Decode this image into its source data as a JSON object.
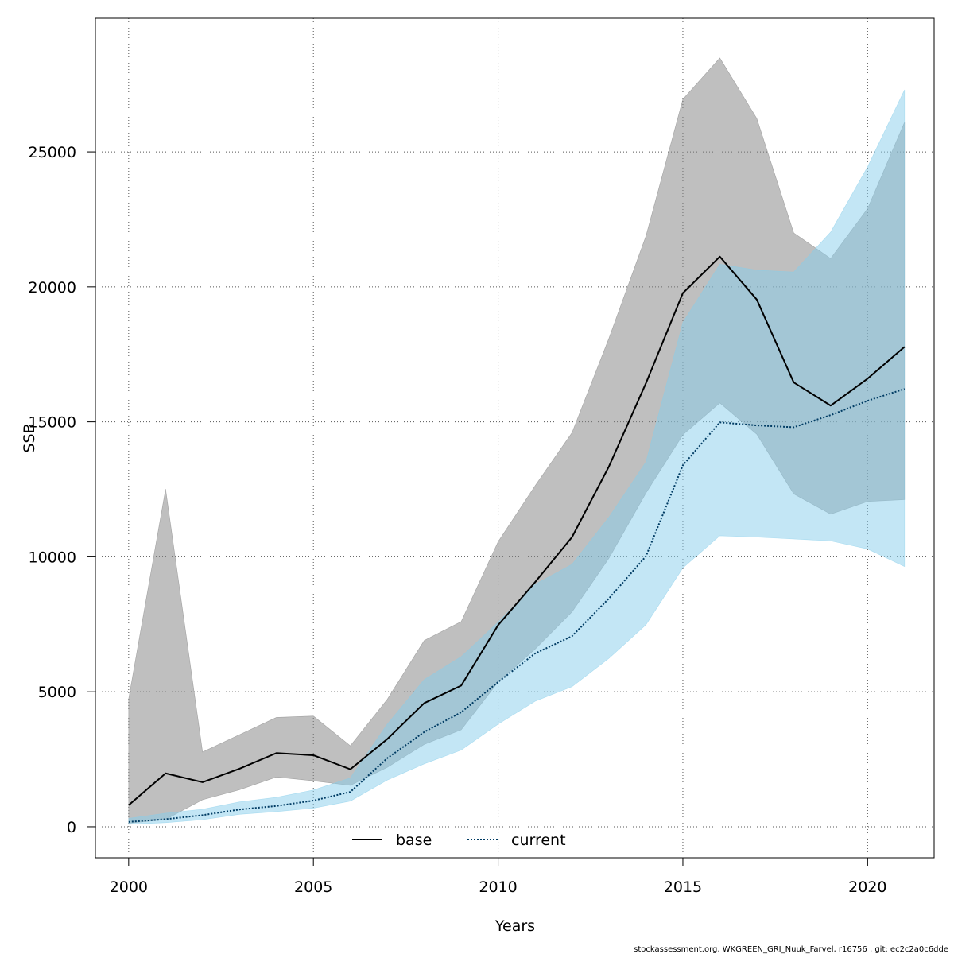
{
  "chart_data": {
    "type": "line",
    "xlabel": "Years",
    "ylabel": "SSB",
    "xlim": [
      1999.1,
      2021.8
    ],
    "ylim": [
      -1150,
      29950
    ],
    "xticks": [
      2000,
      2005,
      2010,
      2015,
      2020
    ],
    "yticks": [
      0,
      5000,
      10000,
      15000,
      20000,
      25000
    ],
    "grid": true,
    "legend_position": "bottom",
    "x": [
      2000,
      2001,
      2002,
      2003,
      2004,
      2005,
      2006,
      2007,
      2008,
      2009,
      2010,
      2011,
      2012,
      2013,
      2014,
      2015,
      2016,
      2017,
      2018,
      2019,
      2020,
      2021
    ],
    "series": [
      {
        "name": "base",
        "line_style": "solid",
        "color": "#000000",
        "band_color": "#808080",
        "values": [
          800,
          1980,
          1650,
          2150,
          2730,
          2650,
          2130,
          3250,
          4580,
          5230,
          7470,
          9060,
          10730,
          13350,
          16430,
          19770,
          21120,
          19530,
          16460,
          15600,
          16600,
          17780
        ],
        "lower": [
          130,
          270,
          1000,
          1370,
          1840,
          1700,
          1530,
          2200,
          3050,
          3590,
          5360,
          6580,
          7960,
          9950,
          12360,
          14520,
          15700,
          14540,
          12330,
          11580,
          12050,
          12120
        ],
        "upper": [
          4740,
          12510,
          2770,
          3410,
          4050,
          4100,
          3000,
          4720,
          6900,
          7600,
          10560,
          12630,
          14600,
          18100,
          21880,
          26950,
          28480,
          26240,
          22000,
          21050,
          22900,
          26100
        ]
      },
      {
        "name": "current",
        "line_style": "dotted",
        "color": "#003c64",
        "band_color": "#87ceeb",
        "values": [
          180,
          280,
          430,
          640,
          770,
          970,
          1290,
          2540,
          3510,
          4240,
          5360,
          6420,
          7060,
          8460,
          10020,
          13390,
          14980,
          14870,
          14800,
          15250,
          15780,
          16220
        ],
        "lower": [
          90,
          150,
          260,
          460,
          560,
          690,
          950,
          1730,
          2330,
          2840,
          3800,
          4650,
          5190,
          6240,
          7480,
          9590,
          10780,
          10730,
          10660,
          10590,
          10290,
          9640
        ],
        "upper": [
          310,
          500,
          650,
          920,
          1090,
          1360,
          1810,
          3800,
          5450,
          6300,
          7580,
          8980,
          9720,
          11470,
          13510,
          18680,
          20840,
          20620,
          20550,
          22030,
          24450,
          27300
        ]
      }
    ]
  },
  "footer": "stockassessment.org, WKGREEN_GRI_Nuuk_Farvel, r16756 , git: ec2c2a0c6dde"
}
